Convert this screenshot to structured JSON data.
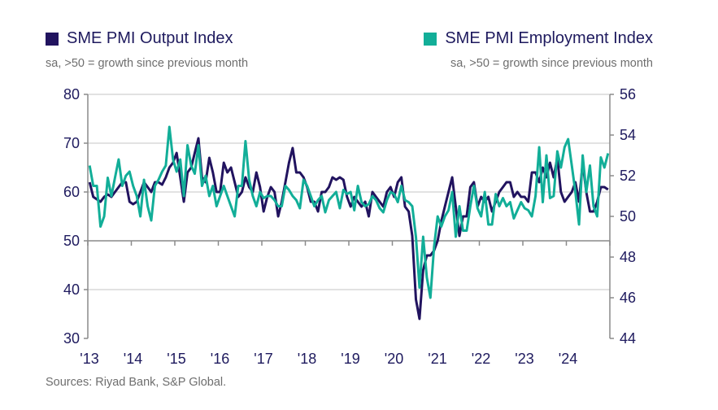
{
  "chart_data": {
    "type": "line",
    "x_start": "2013-01",
    "x_end": "2024-12",
    "frequency": "monthly",
    "x_tick_labels": [
      "'13",
      "'14",
      "'15",
      "'16",
      "'17",
      "'18",
      "'19",
      "'20",
      "'21",
      "'22",
      "'23",
      "'24"
    ],
    "left_axis": {
      "ylim": [
        30,
        80
      ],
      "ticks": [
        "80",
        "70",
        "60",
        "50",
        "40",
        "30"
      ]
    },
    "right_axis": {
      "ylim": [
        44,
        56
      ],
      "ticks": [
        "56",
        "54",
        "52",
        "50",
        "48",
        "46",
        "44"
      ]
    },
    "grid": "horizontal",
    "series": [
      {
        "name": "SME PMI Output Index",
        "subtitle": "sa, >50 = growth since previous month",
        "axis": "left",
        "color": "#21135f",
        "values": [
          62,
          59,
          58.5,
          58,
          59,
          59.5,
          59,
          60,
          61,
          62,
          62,
          58,
          57.5,
          58,
          60,
          62,
          61,
          60,
          62,
          62,
          61.5,
          63,
          65,
          66,
          68,
          63,
          58,
          64,
          65,
          68,
          71,
          63,
          62,
          67,
          64,
          60,
          60,
          66,
          64,
          65,
          62,
          59,
          60,
          63,
          61,
          60,
          64,
          61,
          56,
          59,
          61,
          60,
          55,
          58,
          62,
          66,
          69,
          64,
          64,
          63,
          61,
          58,
          58,
          56,
          60,
          60,
          61,
          63,
          62.5,
          63,
          62.5,
          59,
          57,
          59,
          58,
          57,
          58,
          55,
          60,
          59,
          58,
          57,
          60,
          61,
          59,
          62,
          63,
          57,
          56,
          51,
          38,
          34,
          44,
          47,
          47,
          48,
          50,
          54,
          57,
          60,
          63,
          57,
          51,
          55,
          55,
          61,
          62,
          57,
          59,
          58,
          59,
          56,
          58,
          60,
          61,
          62,
          62,
          59,
          60,
          59,
          59,
          58,
          64,
          64,
          62,
          65,
          63,
          66,
          63,
          67,
          60,
          58,
          59,
          60,
          62,
          58,
          66,
          60,
          56,
          56,
          58,
          61,
          61,
          60.5
        ]
      },
      {
        "name": "SME PMI Employment Index",
        "subtitle": "sa, >50 = growth since previous month",
        "axis": "right",
        "color": "#12ae98",
        "values": [
          52.5,
          51.5,
          51.5,
          49.5,
          50,
          51.9,
          51,
          51.9,
          52.8,
          51.5,
          52,
          52.2,
          51.5,
          51,
          50,
          51.8,
          50.5,
          49.8,
          51.5,
          51.8,
          52.2,
          52.5,
          54.4,
          52.8,
          52.2,
          52.8,
          51,
          53.5,
          52.5,
          52.1,
          53.5,
          51.5,
          52,
          51,
          51.5,
          50.5,
          51,
          51.5,
          51,
          50.5,
          50,
          51.5,
          51.5,
          53.7,
          51.8,
          51,
          50.5,
          51.2,
          50.9,
          51,
          51,
          50.8,
          50.5,
          50.5,
          51.5,
          51.3,
          51,
          50.8,
          50.4,
          51.8,
          51.5,
          51,
          50.5,
          50.8,
          51,
          50.2,
          50.8,
          51,
          51.2,
          50.4,
          51.3,
          51.1,
          51.2,
          50.3,
          51.5,
          50.7,
          50.5,
          50.6,
          51,
          50.8,
          50.4,
          50.2,
          50.8,
          51.2,
          51.1,
          50.7,
          51.5,
          50.8,
          50.7,
          50.5,
          49,
          46.5,
          49,
          47,
          46,
          48.5,
          50,
          49.5,
          50,
          50.3,
          51.2,
          49,
          50.5,
          49.3,
          49.3,
          50.5,
          51.5,
          50.4,
          50,
          51.2,
          49.6,
          49.6,
          51.1,
          50.5,
          50.9,
          50.5,
          50.7,
          49.9,
          50.3,
          50.7,
          50.4,
          50.3,
          50,
          51,
          53.4,
          50.7,
          53,
          50.9,
          51,
          53.2,
          52.4,
          53.4,
          53.8,
          52.5,
          51.2,
          49.6,
          53,
          51.2,
          52.5,
          50.5,
          50,
          52.9,
          52.4,
          53.1
        ]
      }
    ],
    "source": "Sources: Riyad Bank, S&P Global."
  }
}
